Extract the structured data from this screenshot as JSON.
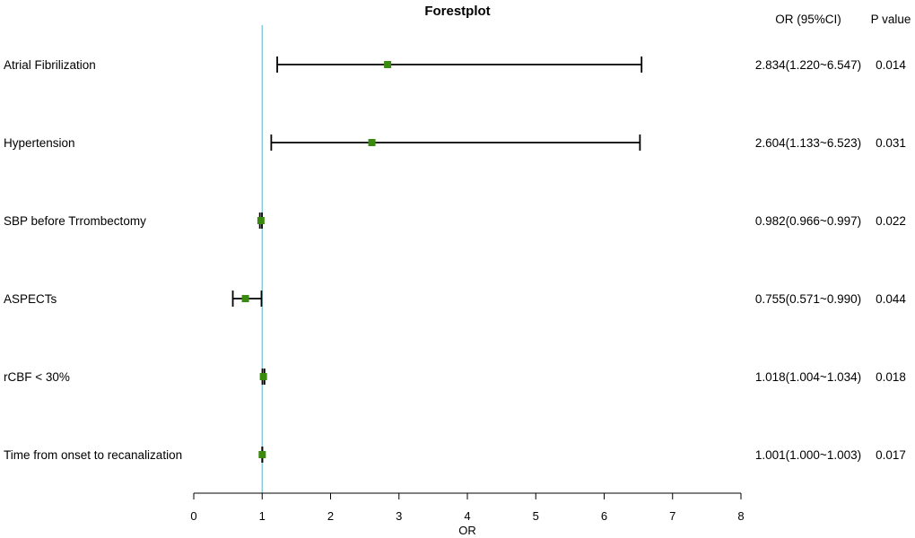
{
  "chart_data": {
    "type": "forest",
    "title": "Forestplot",
    "xlabel": "OR",
    "xlim": [
      0,
      8
    ],
    "xticks": [
      0,
      1,
      2,
      3,
      4,
      5,
      6,
      7,
      8
    ],
    "reference_line": 1,
    "columns": {
      "or_header": "OR (95%CI)",
      "p_header": "P value"
    },
    "rows": [
      {
        "label": "Atrial Fibrilization",
        "or": 2.834,
        "lo": 1.22,
        "hi": 6.547,
        "or_text": "2.834(1.220~6.547)",
        "p": "0.014"
      },
      {
        "label": "Hypertension",
        "or": 2.604,
        "lo": 1.133,
        "hi": 6.523,
        "or_text": "2.604(1.133~6.523)",
        "p": "0.031"
      },
      {
        "label": "SBP before Trrombectomy",
        "or": 0.982,
        "lo": 0.966,
        "hi": 0.997,
        "or_text": "0.982(0.966~0.997)",
        "p": "0.022"
      },
      {
        "label": "ASPECTs",
        "or": 0.755,
        "lo": 0.571,
        "hi": 0.99,
        "or_text": "0.755(0.571~0.990)",
        "p": "0.044"
      },
      {
        "label": "rCBF < 30%",
        "or": 1.018,
        "lo": 1.004,
        "hi": 1.034,
        "or_text": "1.018(1.004~1.034)",
        "p": "0.018"
      },
      {
        "label": "Time from onset to recanalization",
        "or": 1.001,
        "lo": 1.0,
        "hi": 1.003,
        "or_text": "1.001(1.000~1.003)",
        "p": "0.017"
      }
    ],
    "colors": {
      "point": "#3a8a0e",
      "whisker": "#000000",
      "reference": "#6fc3d4"
    }
  }
}
